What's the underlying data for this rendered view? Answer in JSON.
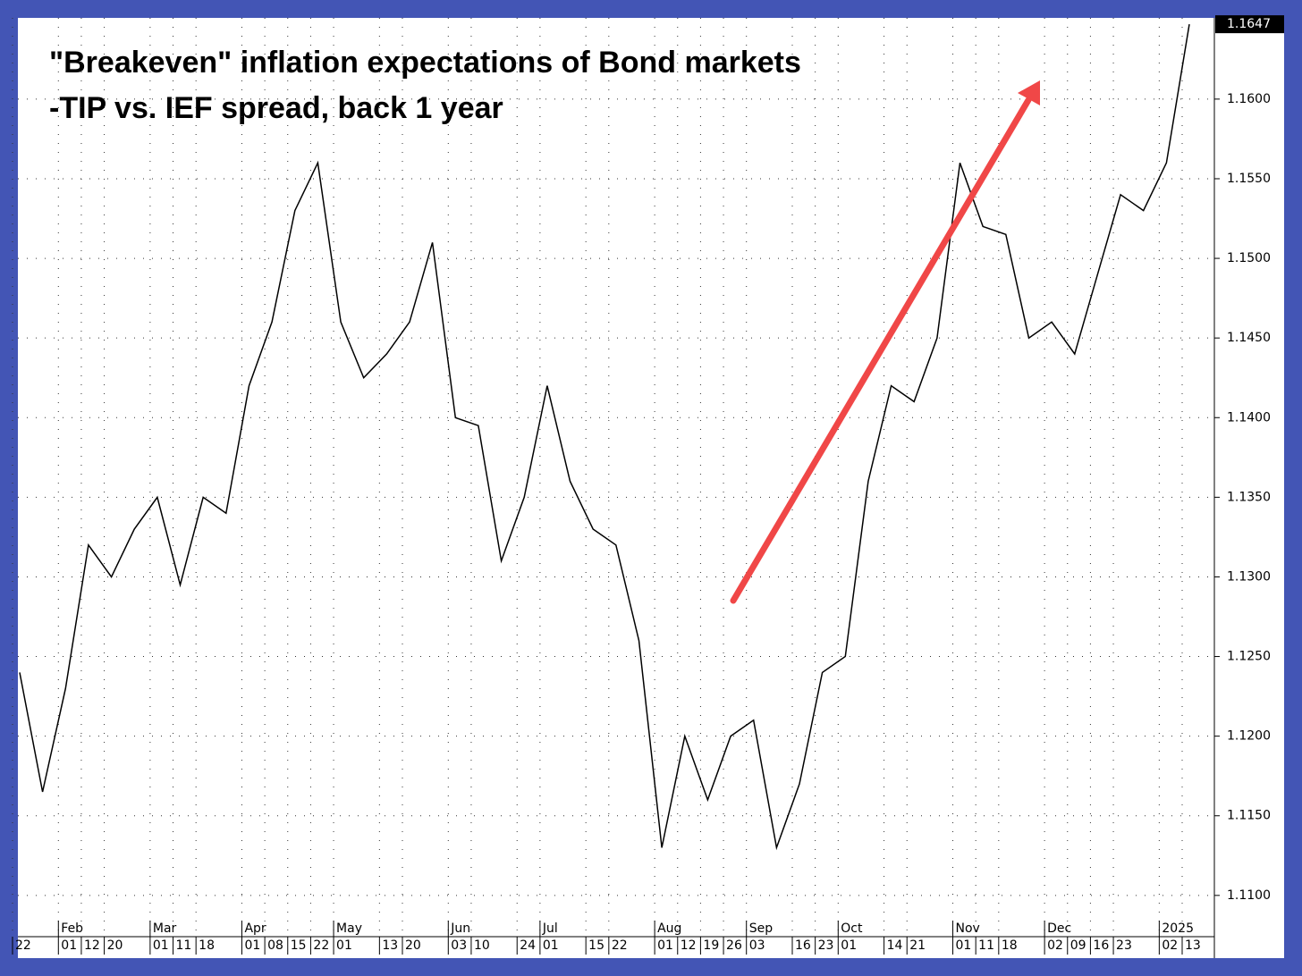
{
  "chart_data": {
    "type": "line",
    "title": "\"Breakeven\" inflation expectations of Bond markets",
    "subtitle": "-TIP vs. IEF spread, back 1 year",
    "categories": [
      "22",
      null,
      "01",
      "12",
      "20",
      null,
      "01",
      "11",
      "18",
      null,
      "01",
      "08",
      "15",
      "22",
      "01",
      null,
      "13",
      "20",
      null,
      "03",
      "10",
      null,
      "24",
      "01",
      null,
      "15",
      "22",
      null,
      "01",
      "12",
      "19",
      "26",
      "03",
      null,
      "16",
      "23",
      "01",
      null,
      "14",
      "21",
      null,
      "01",
      "11",
      "18",
      null,
      "02",
      "09",
      "16",
      "23",
      null,
      "02",
      "13"
    ],
    "months": [
      null,
      null,
      "Feb",
      null,
      null,
      null,
      "Mar",
      null,
      null,
      null,
      "Apr",
      null,
      null,
      null,
      "May",
      null,
      null,
      null,
      null,
      "Jun",
      null,
      null,
      null,
      "Jul",
      null,
      null,
      null,
      null,
      "Aug",
      null,
      null,
      null,
      "Sep",
      null,
      null,
      null,
      "Oct",
      null,
      null,
      null,
      null,
      "Nov",
      null,
      null,
      null,
      "Dec",
      null,
      null,
      null,
      null,
      "2025",
      null
    ],
    "values": [
      1.124,
      1.1165,
      1.123,
      1.132,
      1.13,
      1.133,
      1.135,
      1.1295,
      1.135,
      1.134,
      1.142,
      1.146,
      1.153,
      1.156,
      1.146,
      1.1425,
      1.144,
      1.146,
      1.151,
      1.14,
      1.1395,
      1.131,
      1.135,
      1.142,
      1.136,
      1.133,
      1.132,
      1.126,
      1.113,
      1.12,
      1.116,
      1.12,
      1.121,
      1.113,
      1.117,
      1.124,
      1.125,
      1.136,
      1.142,
      1.141,
      1.145,
      1.156,
      1.152,
      1.1515,
      1.145,
      1.146,
      1.144,
      1.149,
      1.154,
      1.153,
      1.156,
      1.1647
    ],
    "color": "#000000",
    "ylim": [
      1.1087,
      1.1651
    ],
    "yticks": [
      {
        "value": 1.11,
        "label": "1.1100"
      },
      {
        "value": 1.115,
        "label": "1.1150"
      },
      {
        "value": 1.12,
        "label": "1.1200"
      },
      {
        "value": 1.125,
        "label": "1.1250"
      },
      {
        "value": 1.13,
        "label": "1.1300"
      },
      {
        "value": 1.135,
        "label": "1.1350"
      },
      {
        "value": 1.14,
        "label": "1.1400"
      },
      {
        "value": 1.145,
        "label": "1.1450"
      },
      {
        "value": 1.15,
        "label": "1.1500"
      },
      {
        "value": 1.155,
        "label": "1.1550"
      },
      {
        "value": 1.16,
        "label": "1.1600"
      }
    ],
    "grid": true
  }
}
